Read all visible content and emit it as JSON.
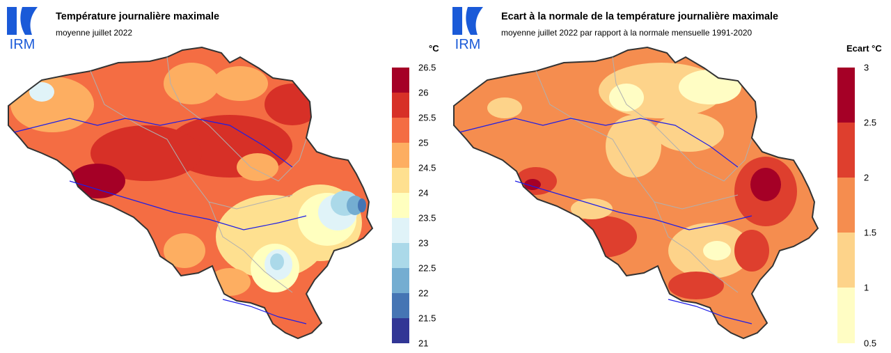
{
  "logo": {
    "text": "IRM",
    "color": "#1a5ad8"
  },
  "panels": [
    {
      "title": "Température journalière maximale",
      "subtitle": "moyenne juillet 2022",
      "unit": "°C",
      "legend": {
        "labels": [
          "26.5",
          "26",
          "25.5",
          "25",
          "24.5",
          "24",
          "23.5",
          "23",
          "22.5",
          "22",
          "21.5",
          "21"
        ],
        "colors": [
          "#a50026",
          "#d73027",
          "#f46d43",
          "#fdae61",
          "#fee090",
          "#ffffbf",
          "#e0f3f8",
          "#abd9e9",
          "#74add1",
          "#4575b4",
          "#313695"
        ]
      }
    },
    {
      "title": "Ecart à la normale de la température journalière maximale",
      "subtitle": "moyenne juillet 2022 par rapport à la normale mensuelle 1991-2020",
      "unit": "Ecart °C",
      "legend": {
        "labels": [
          "3",
          "2.5",
          "2",
          "1.5",
          "1",
          "0.5"
        ],
        "colors": [
          "#a50026",
          "#de3f2e",
          "#f58d4f",
          "#fdd38a",
          "#fffdc4"
        ]
      }
    }
  ]
}
